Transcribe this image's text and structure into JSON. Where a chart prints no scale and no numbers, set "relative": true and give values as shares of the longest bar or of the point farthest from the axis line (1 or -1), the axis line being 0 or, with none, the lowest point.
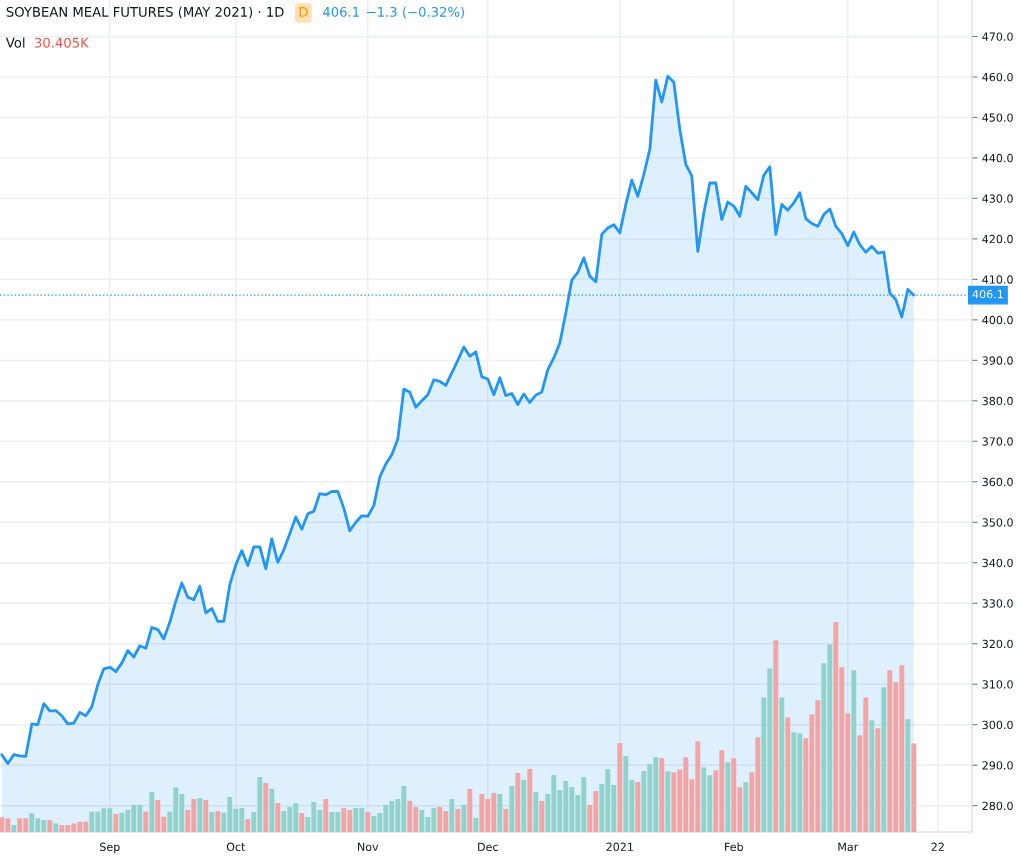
{
  "chart_data": [
    {
      "type": "area",
      "title": "SOYBEAN MEAL FUTURES (MAY 2021) · 1D",
      "annotations": [
        "D",
        "406.1",
        "−1.3 (−0.32%)"
      ],
      "categories": [
        null,
        null,
        null,
        null,
        null,
        null,
        null,
        null,
        null,
        null,
        null,
        null,
        null,
        null,
        null,
        null,
        null,
        null,
        "Sep",
        null,
        null,
        null,
        null,
        null,
        null,
        null,
        null,
        null,
        null,
        null,
        null,
        null,
        null,
        null,
        null,
        null,
        null,
        null,
        null,
        "Oct",
        null,
        null,
        null,
        null,
        null,
        null,
        null,
        null,
        null,
        null,
        null,
        null,
        null,
        null,
        null,
        null,
        null,
        null,
        null,
        null,
        null,
        "Nov",
        null,
        null,
        null,
        null,
        null,
        null,
        null,
        null,
        null,
        null,
        null,
        null,
        null,
        null,
        null,
        null,
        null,
        null,
        null,
        "Dec",
        null,
        null,
        null,
        null,
        null,
        null,
        null,
        null,
        null,
        null,
        null,
        null,
        null,
        null,
        null,
        null,
        null,
        null,
        null,
        null,
        null,
        "2021",
        null,
        null,
        null,
        null,
        null,
        null,
        null,
        null,
        null,
        null,
        null,
        null,
        null,
        null,
        null,
        null,
        null,
        null,
        "Feb",
        null,
        null,
        null,
        null,
        null,
        null,
        null,
        null,
        null,
        null,
        null,
        null,
        null,
        null,
        null,
        null,
        null,
        null,
        "Mar",
        null,
        null,
        null,
        null,
        null,
        null,
        null,
        null,
        null,
        null,
        null,
        null,
        null,
        null,
        "22",
        null,
        null,
        null,
        null,
        null
      ],
      "series": [
        {
          "color": "#2196f3",
          "values": [
            292.6,
            290.4,
            292.6,
            292.3,
            292.2,
            300.2,
            300.0,
            305.2,
            303.4,
            303.5,
            302.2,
            300.2,
            300.4,
            303.0,
            302.2,
            304.4,
            309.9,
            313.8,
            314.2,
            313.1,
            315.2,
            318.3,
            316.7,
            319.5,
            318.9,
            324.0,
            323.5,
            321.2,
            325.3,
            330.5,
            335.0,
            331.5,
            330.9,
            334.2,
            327.6,
            328.7,
            325.5,
            325.5,
            334.6,
            339.5,
            343.0,
            339.3,
            343.9,
            343.9,
            338.5,
            345.9,
            340.1,
            343.2,
            347.2,
            351.3,
            348.3,
            352.1,
            352.7,
            357.1,
            356.8,
            357.6,
            357.6,
            353.5,
            347.9,
            350.0,
            351.6,
            351.5,
            354.1,
            361.2,
            364.4,
            366.7,
            370.6,
            382.9,
            382.1,
            378.4,
            380.0,
            381.5,
            385.2,
            384.8,
            383.8,
            386.9,
            390.0,
            393.3,
            391.0,
            392.1,
            385.9,
            385.4,
            381.5,
            385.7,
            381.3,
            381.8,
            379.1,
            381.7,
            379.6,
            381.4,
            382.2,
            387.7,
            390.6,
            394.3,
            401.7,
            409.8,
            411.7,
            415.3,
            410.8,
            409.4,
            421.1,
            422.7,
            423.5,
            421.5,
            428.5,
            434.5,
            430.5,
            435.9,
            442.1,
            459.2,
            453.8,
            460.2,
            458.7,
            447.0,
            438.4,
            435.5,
            416.9,
            426.4,
            433.8,
            433.8,
            424.8,
            429.1,
            428.1,
            425.6,
            433.0,
            431.4,
            429.7,
            435.7,
            437.8,
            421.1,
            428.5,
            427.1,
            428.9,
            431.4,
            425.0,
            423.8,
            423.1,
            426.0,
            427.4,
            423.1,
            421.3,
            418.3,
            421.7,
            418.6,
            416.7,
            418.2,
            416.5,
            416.7,
            406.6,
            405.0,
            400.7,
            407.5,
            406.1,
            null,
            null,
            null,
            null,
            null,
            null,
            null,
            null,
            null
          ]
        }
      ],
      "ylim": [
        273.5,
        479
      ],
      "yticks": [
        {
          "value": 280,
          "label": "280.0"
        },
        {
          "value": 290,
          "label": "290.0"
        },
        {
          "value": 300,
          "label": "300.0"
        },
        {
          "value": 310,
          "label": "310.0"
        },
        {
          "value": 320,
          "label": "320.0"
        },
        {
          "value": 330,
          "label": "330.0"
        },
        {
          "value": 340,
          "label": "340.0"
        },
        {
          "value": 350,
          "label": "350.0"
        },
        {
          "value": 360,
          "label": "360.0"
        },
        {
          "value": 370,
          "label": "370.0"
        },
        {
          "value": 380,
          "label": "380.0"
        },
        {
          "value": 390,
          "label": "390.0"
        },
        {
          "value": 400,
          "label": "400.0"
        },
        {
          "value": 410,
          "label": "410.0"
        },
        {
          "value": 420,
          "label": "420.0"
        },
        {
          "value": 430,
          "label": "430.0"
        },
        {
          "value": 440,
          "label": "440.0"
        },
        {
          "value": 450,
          "label": "450.0"
        },
        {
          "value": 460,
          "label": "460.0"
        },
        {
          "value": 470,
          "label": "470.0"
        }
      ],
      "grid": true,
      "ref_lines": [
        {
          "axis": "y",
          "value": 406.1,
          "label": "406.1",
          "color": "#2196f3",
          "line_style": "dotted"
        }
      ]
    },
    {
      "type": "bar",
      "relative": true,
      "annotations": [
        "Vol",
        "30.405K"
      ],
      "categories": [
        null,
        null,
        null,
        null,
        null,
        null,
        null,
        null,
        null,
        null,
        null,
        null,
        null,
        null,
        null,
        null,
        null,
        null,
        null,
        null,
        null,
        null,
        null,
        null,
        null,
        null,
        null,
        null,
        null,
        null,
        null,
        null,
        null,
        null,
        null,
        null,
        null,
        null,
        null,
        null,
        null,
        null,
        null,
        null,
        null,
        null,
        null,
        null,
        null,
        null,
        null,
        null,
        null,
        null,
        null,
        null,
        null,
        null,
        null,
        null,
        null,
        null,
        null,
        null,
        null,
        null,
        null,
        null,
        null,
        null,
        null,
        null,
        null,
        null,
        null,
        null,
        null,
        null,
        null,
        null,
        null,
        null,
        null,
        null,
        null,
        null,
        null,
        null,
        null,
        null,
        null,
        null,
        null,
        null,
        null,
        null,
        null,
        null,
        null,
        null,
        null,
        null,
        null,
        null,
        null,
        null,
        null,
        null,
        null,
        null,
        null,
        null,
        null,
        null,
        null,
        null,
        null,
        null,
        null,
        null,
        null,
        null,
        null,
        null,
        null,
        null,
        null,
        null,
        null,
        null,
        null,
        null,
        null,
        null,
        null,
        null,
        null,
        null,
        null,
        null,
        null,
        null,
        null,
        null,
        null,
        null,
        null,
        null,
        null,
        null,
        null,
        null,
        null,
        null,
        null,
        null,
        null,
        null,
        null,
        null,
        null,
        null
      ],
      "values": [
        0.07,
        0.065,
        0.033,
        0.065,
        0.065,
        0.089,
        0.065,
        0.057,
        0.057,
        0.041,
        0.033,
        0.033,
        0.041,
        0.049,
        0.049,
        0.097,
        0.097,
        0.113,
        0.113,
        0.086,
        0.092,
        0.105,
        0.129,
        0.129,
        0.097,
        0.19,
        0.152,
        0.073,
        0.097,
        0.213,
        0.181,
        0.105,
        0.157,
        0.162,
        0.152,
        0.095,
        0.1,
        0.092,
        0.167,
        0.11,
        0.114,
        0.062,
        0.095,
        0.262,
        0.233,
        0.205,
        0.138,
        0.1,
        0.119,
        0.138,
        0.09,
        0.071,
        0.143,
        0.105,
        0.157,
        0.095,
        0.095,
        0.114,
        0.105,
        0.114,
        0.114,
        0.095,
        0.076,
        0.09,
        0.129,
        0.148,
        0.157,
        0.219,
        0.148,
        0.119,
        0.105,
        0.071,
        0.114,
        0.119,
        0.1,
        0.157,
        0.11,
        0.129,
        0.205,
        0.067,
        0.181,
        0.157,
        0.186,
        0.181,
        0.11,
        0.219,
        0.281,
        0.248,
        0.3,
        0.19,
        0.148,
        0.181,
        0.271,
        0.2,
        0.243,
        0.214,
        0.176,
        0.262,
        0.129,
        0.195,
        0.229,
        0.3,
        0.224,
        0.424,
        0.362,
        0.248,
        0.238,
        0.29,
        0.324,
        0.357,
        0.352,
        0.289,
        0.284,
        0.298,
        0.356,
        0.251,
        0.432,
        0.308,
        0.27,
        0.294,
        0.389,
        0.332,
        0.351,
        0.213,
        0.237,
        0.284,
        0.451,
        0.641,
        0.779,
        0.913,
        0.641,
        0.546,
        0.475,
        0.47,
        0.446,
        0.56,
        0.627,
        0.803,
        0.894,
        1,
        0.784,
        0.565,
        0.77,
        0.46,
        0.641,
        0.532,
        0.494,
        0.689,
        0.77,
        0.713,
        0.794,
        0.537,
        0.422,
        null,
        null,
        null,
        null,
        null,
        null,
        null,
        null,
        null
      ],
      "colors": [
        "#f5a3a3",
        "#f5a3a3",
        "#8fd3cb",
        "#f5a3a3",
        "#f5a3a3",
        "#8fd3cb",
        "#8fd3cb",
        "#8fd3cb",
        "#f5a3a3",
        "#8fd3cb",
        "#f5a3a3",
        "#f5a3a3",
        "#f5a3a3",
        "#f5a3a3",
        "#f5a3a3",
        "#8fd3cb",
        "#8fd3cb",
        "#8fd3cb",
        "#8fd3cb",
        "#f5a3a3",
        "#8fd3cb",
        "#8fd3cb",
        "#8fd3cb",
        "#8fd3cb",
        "#f5a3a3",
        "#8fd3cb",
        "#f5a3a3",
        "#f5a3a3",
        "#8fd3cb",
        "#8fd3cb",
        "#8fd3cb",
        "#f5a3a3",
        "#f5a3a3",
        "#8fd3cb",
        "#f5a3a3",
        "#8fd3cb",
        "#f5a3a3",
        "#8fd3cb",
        "#8fd3cb",
        "#8fd3cb",
        "#8fd3cb",
        "#f5a3a3",
        "#8fd3cb",
        "#8fd3cb",
        "#f5a3a3",
        "#8fd3cb",
        "#f5a3a3",
        "#8fd3cb",
        "#8fd3cb",
        "#8fd3cb",
        "#f5a3a3",
        "#8fd3cb",
        "#8fd3cb",
        "#8fd3cb",
        "#f5a3a3",
        "#8fd3cb",
        "#8fd3cb",
        "#f5a3a3",
        "#f5a3a3",
        "#8fd3cb",
        "#8fd3cb",
        "#f5a3a3",
        "#8fd3cb",
        "#8fd3cb",
        "#8fd3cb",
        "#8fd3cb",
        "#8fd3cb",
        "#8fd3cb",
        "#f5a3a3",
        "#f5a3a3",
        "#8fd3cb",
        "#8fd3cb",
        "#8fd3cb",
        "#f5a3a3",
        "#f5a3a3",
        "#8fd3cb",
        "#f5a3a3",
        "#8fd3cb",
        "#f5a3a3",
        "#8fd3cb",
        "#f5a3a3",
        "#f5a3a3",
        "#f5a3a3",
        "#8fd3cb",
        "#f5a3a3",
        "#8fd3cb",
        "#f5a3a3",
        "#8fd3cb",
        "#f5a3a3",
        "#8fd3cb",
        "#f5a3a3",
        "#8fd3cb",
        "#8fd3cb",
        "#8fd3cb",
        "#8fd3cb",
        "#8fd3cb",
        "#8fd3cb",
        "#8fd3cb",
        "#f5a3a3",
        "#f5a3a3",
        "#8fd3cb",
        "#8fd3cb",
        "#8fd3cb",
        "#f5a3a3",
        "#8fd3cb",
        "#8fd3cb",
        "#f5a3a3",
        "#8fd3cb",
        "#8fd3cb",
        "#8fd3cb",
        "#f5a3a3",
        "#8fd3cb",
        "#f5a3a3",
        "#f5a3a3",
        "#f5a3a3",
        "#f5a3a3",
        "#f5a3a3",
        "#8fd3cb",
        "#8fd3cb",
        "#f5a3a3",
        "#f5a3a3",
        "#8fd3cb",
        "#f5a3a3",
        "#f5a3a3",
        "#8fd3cb",
        "#f5a3a3",
        "#f5a3a3",
        "#8fd3cb",
        "#8fd3cb",
        "#f5a3a3",
        "#8fd3cb",
        "#f5a3a3",
        "#8fd3cb",
        "#8fd3cb",
        "#f5a3a3",
        "#f5a3a3",
        "#f5a3a3",
        "#8fd3cb",
        "#8fd3cb",
        "#f5a3a3",
        "#f5a3a3",
        "#f5a3a3",
        "#8fd3cb",
        "#f5a3a3",
        "#f5a3a3",
        "#8fd3cb",
        "#f5a3a3",
        "#8fd3cb",
        "#f5a3a3",
        "#f5a3a3",
        "#f5a3a3",
        "#8fd3cb",
        "#f5a3a3",
        null,
        null,
        null,
        null,
        null,
        null,
        null,
        null,
        null
      ]
    }
  ]
}
